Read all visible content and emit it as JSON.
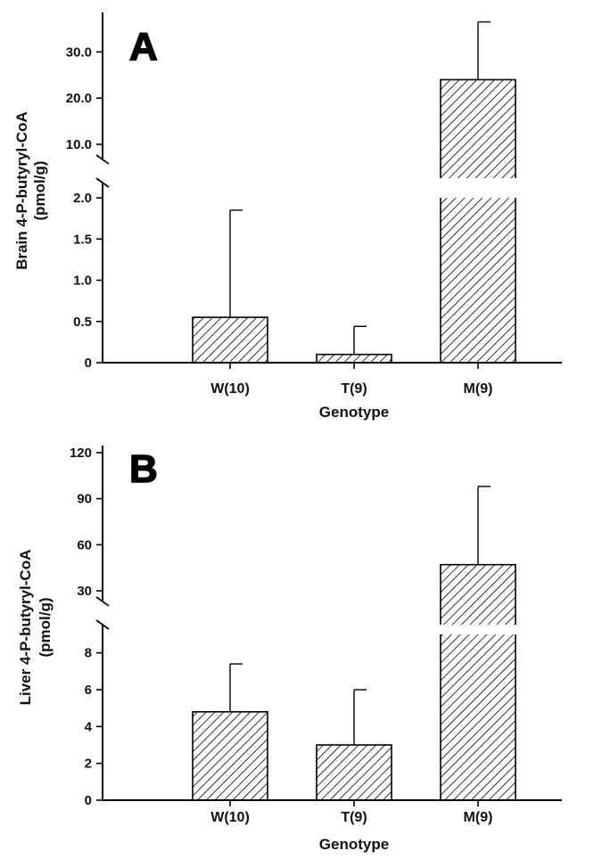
{
  "chart_data": [
    {
      "panel": "A",
      "type": "bar",
      "broken_axis": true,
      "xlabel": "Genotype",
      "ylabel_lines": [
        "Brain 4-P-butyryl-CoA",
        "(pmol/g)"
      ],
      "categories": [
        "W(10)",
        "T(9)",
        "M(9)"
      ],
      "values": [
        0.55,
        0.1,
        24.0
      ],
      "errors_upper": [
        1.85,
        0.44,
        36.5
      ],
      "lower_segment": {
        "ylim": [
          0,
          2.0
        ],
        "ticks": [
          "0",
          "0.5",
          "1.0",
          "1.5",
          "2.0"
        ],
        "tick_values": [
          0,
          0.5,
          1.0,
          1.5,
          2.0
        ]
      },
      "upper_segment": {
        "ylim": [
          2.0,
          37
        ],
        "ticks": [
          "10.0",
          "20.0",
          "30.0"
        ],
        "tick_values": [
          10,
          20,
          30
        ]
      },
      "bar_pattern": "diagonal-hatch",
      "grid": false
    },
    {
      "panel": "B",
      "type": "bar",
      "broken_axis": true,
      "xlabel": "Genotype",
      "ylabel_lines": [
        "Liver 4-P-butyryl-CoA",
        "(pmol/g)"
      ],
      "categories": [
        "W(10)",
        "T(9)",
        "M(9)"
      ],
      "values": [
        4.8,
        3.0,
        47.0
      ],
      "errors_upper": [
        7.4,
        6.0,
        98.0
      ],
      "lower_segment": {
        "ylim": [
          0,
          9
        ],
        "ticks": [
          "0",
          "2",
          "4",
          "6",
          "8"
        ],
        "tick_values": [
          0,
          2,
          4,
          6,
          8
        ]
      },
      "upper_segment": {
        "ylim": [
          9,
          120
        ],
        "ticks": [
          "30",
          "60",
          "90",
          "120"
        ],
        "tick_values": [
          30,
          60,
          90,
          120
        ]
      },
      "bar_pattern": "diagonal-hatch",
      "grid": false
    }
  ]
}
